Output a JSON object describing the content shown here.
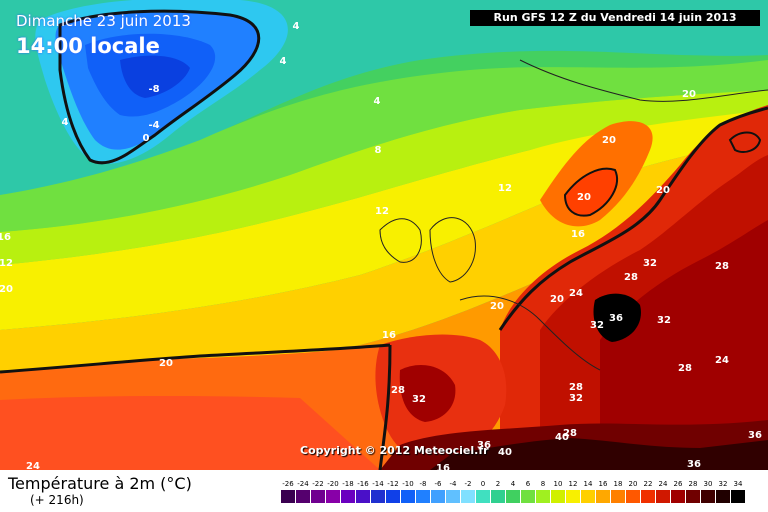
{
  "header": {
    "run": "Run GFS 12 Z du Vendredi 14 juin 2013",
    "date": "Dimanche 23 juin 2013",
    "time": "14:00 locale"
  },
  "footer": {
    "title": "Température à 2m (°C)",
    "subtitle": "(+ 216h)",
    "copyright": "Copyright © 2012 Meteociel.fr"
  },
  "scale": {
    "labels": [
      "-26",
      "-24",
      "-22",
      "-20",
      "-18",
      "-16",
      "-14",
      "-12",
      "-10",
      "-8",
      "-6",
      "-4",
      "-2",
      "0",
      "2",
      "4",
      "6",
      "8",
      "10",
      "12",
      "14",
      "16",
      "18",
      "20",
      "22",
      "24",
      "26",
      "28",
      "30",
      "32",
      "34"
    ],
    "colors": [
      "#3a0050",
      "#55006e",
      "#700090",
      "#8800a8",
      "#6a00c0",
      "#4a10c8",
      "#2030d0",
      "#1040e8",
      "#1060f8",
      "#2080ff",
      "#40a0ff",
      "#60c0ff",
      "#80e0ff",
      "#40e0c0",
      "#30d090",
      "#40d060",
      "#70e040",
      "#a0f020",
      "#d0f000",
      "#f8f000",
      "#ffd000",
      "#ffa800",
      "#ff8000",
      "#ff5800",
      "#f03000",
      "#d01800",
      "#a00000",
      "#700000",
      "#400000",
      "#200000",
      "#000000"
    ]
  },
  "map_labels": [
    {
      "id": "l1",
      "text": "-8"
    },
    {
      "id": "l2",
      "text": "-4"
    },
    {
      "id": "l3",
      "text": "0"
    },
    {
      "id": "l4",
      "text": "4"
    },
    {
      "id": "l5",
      "text": "4"
    },
    {
      "id": "l6",
      "text": "4"
    },
    {
      "id": "l7",
      "text": "4"
    },
    {
      "id": "l8",
      "text": "8"
    },
    {
      "id": "l9",
      "text": "12"
    },
    {
      "id": "l10",
      "text": "12"
    },
    {
      "id": "l11",
      "text": "16"
    },
    {
      "id": "l12",
      "text": "16"
    },
    {
      "id": "l13",
      "text": "20"
    },
    {
      "id": "l14",
      "text": "20"
    },
    {
      "id": "l15",
      "text": "20"
    },
    {
      "id": "l16",
      "text": "20"
    },
    {
      "id": "l17",
      "text": "20"
    },
    {
      "id": "l18",
      "text": "20"
    },
    {
      "id": "l19",
      "text": "20"
    },
    {
      "id": "l20",
      "text": "24"
    },
    {
      "id": "l21",
      "text": "24"
    },
    {
      "id": "l22",
      "text": "24"
    },
    {
      "id": "l23",
      "text": "28"
    },
    {
      "id": "l24",
      "text": "28"
    },
    {
      "id": "l25",
      "text": "28"
    },
    {
      "id": "l26",
      "text": "28"
    },
    {
      "id": "l27",
      "text": "28"
    },
    {
      "id": "l28",
      "text": "28"
    },
    {
      "id": "l29",
      "text": "32"
    },
    {
      "id": "l30",
      "text": "32"
    },
    {
      "id": "l31",
      "text": "32"
    },
    {
      "id": "l32",
      "text": "32"
    },
    {
      "id": "l33",
      "text": "32"
    },
    {
      "id": "l34",
      "text": "36"
    },
    {
      "id": "l35",
      "text": "36"
    },
    {
      "id": "l36",
      "text": "36"
    },
    {
      "id": "l37",
      "text": "36"
    },
    {
      "id": "l38",
      "text": "40"
    },
    {
      "id": "l39",
      "text": "40"
    },
    {
      "id": "l40",
      "text": "16"
    },
    {
      "id": "l41",
      "text": "12"
    },
    {
      "id": "l42",
      "text": "20"
    },
    {
      "id": "l43",
      "text": "16"
    }
  ]
}
